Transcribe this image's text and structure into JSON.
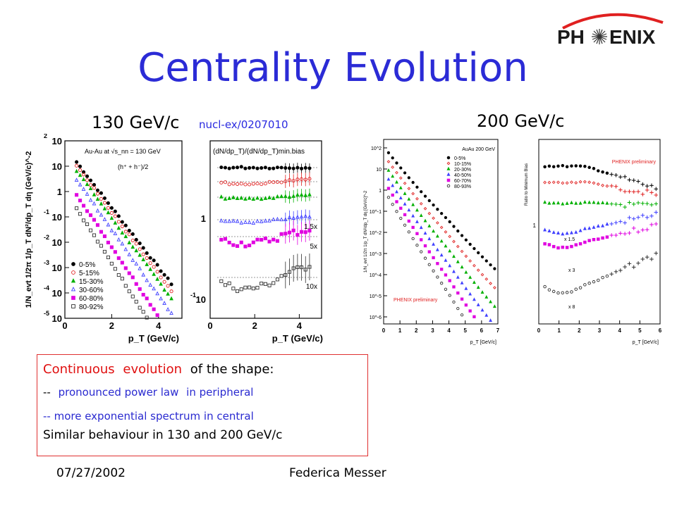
{
  "slide": {
    "title": "Centrality Evolution",
    "logo_text": {
      "left": "PH",
      "right": "ENIX"
    },
    "energy_130": "130 GeV/c",
    "reference": "nucl-ex/0207010",
    "energy_200": "200 GeV/c"
  },
  "textbox": {
    "line1_red_a": "Continuous",
    "line1_red_b": "evolution",
    "line1_black": "of the shape:",
    "line2_dash": "--",
    "line2_blue_a": "pronounced power law",
    "line2_blue_b": "in peripheral",
    "line3": "-- more exponential spectrum in central",
    "line4": "Similar behaviour in 130 and 200 GeV/c"
  },
  "footer": {
    "date": "07/27/2002",
    "author": "Federica Messer"
  },
  "colors": {
    "title": "#2b2bd6",
    "series": [
      "#000000",
      "#e02020",
      "#00b000",
      "#4040ff",
      "#e000e0",
      "#303030"
    ]
  },
  "chart_data": [
    {
      "type": "scatter",
      "ylabel": "1/N_evt 1/2π 1/p_T dN²/dp_T dη (GeV/c)^-2",
      "xlabel": "p_T (GeV/c)",
      "annotation": "Au-Au at √s_nn = 130 GeV",
      "annotation2": "(h⁺ + h⁻)/2",
      "ylog": true,
      "ylim": [
        1e-05,
        100
      ],
      "xlim": [
        0,
        5
      ],
      "x_ticks": [
        "0",
        "2",
        "4"
      ],
      "y_ticks": [
        "10^2",
        "10",
        "1",
        "10^-1",
        "10^-2",
        "10^-3",
        "10^-4",
        "10^-5"
      ],
      "legend_position": "bottom-left",
      "series": [
        {
          "name": "0-5%",
          "marker": "filled-circle",
          "color": "#000000",
          "intercept": 60,
          "slope": -2.2
        },
        {
          "name": "5-15%",
          "marker": "open-circle",
          "color": "#e02020",
          "intercept": 45,
          "slope": -2.25
        },
        {
          "name": "15-30%",
          "marker": "filled-triangle",
          "color": "#00b000",
          "intercept": 30,
          "slope": -2.3
        },
        {
          "name": "30-60%",
          "marker": "open-triangle",
          "color": "#4040ff",
          "intercept": 14,
          "slope": -2.4
        },
        {
          "name": "60-80%",
          "marker": "filled-square",
          "color": "#e000e0",
          "intercept": 4,
          "slope": -2.5
        },
        {
          "name": "80-92%",
          "marker": "open-square",
          "color": "#303030",
          "intercept": 1.2,
          "slope": -2.6
        }
      ]
    },
    {
      "type": "scatter",
      "title": "(dN/dp_T)/(dN/dp_T)min.bias",
      "xlabel": "p_T (GeV/c)",
      "ylog": true,
      "xlim": [
        0,
        5
      ],
      "x_ticks": [
        "0",
        "2",
        "4"
      ],
      "y_ticks": [
        "1",
        "10^-1"
      ],
      "scale_labels": [
        "1.5x",
        "5x",
        "10x"
      ]
    },
    {
      "type": "scatter",
      "annotation": "AuAu 200 GeV",
      "ylabel": "1/N_evt 1/2π 1/p_T dN²/dp_T dη [GeV/c]^-2",
      "xlabel": "p_T [GeV/c]",
      "ylog": true,
      "xlim": [
        0,
        7
      ],
      "x_ticks": [
        "0",
        "1",
        "2",
        "3",
        "4",
        "5",
        "6",
        "7"
      ],
      "y_ticks": [
        "10^2",
        "10",
        "1",
        "10^-1",
        "10^-2",
        "10^-3",
        "10^-4",
        "10^-5",
        "10^-6"
      ],
      "note": "PHENIX preliminary",
      "legend_position": "top-right",
      "series": [
        {
          "name": "0-5%"
        },
        {
          "name": "10-15%"
        },
        {
          "name": "20-30%"
        },
        {
          "name": "40-50%"
        },
        {
          "name": "60-70%"
        },
        {
          "name": "80-93%"
        }
      ]
    },
    {
      "type": "scatter",
      "ylabel": "Ratio to Minimum Bias",
      "xlabel": "p_T [GeV/c]",
      "xlim": [
        0,
        6
      ],
      "x_ticks": [
        "0",
        "1",
        "2",
        "3",
        "4",
        "5",
        "6"
      ],
      "y_ticks": [
        "1"
      ],
      "note": "PHENIX preliminary",
      "scale_labels": [
        "x 1.5",
        "x 3",
        "x 8"
      ]
    }
  ]
}
